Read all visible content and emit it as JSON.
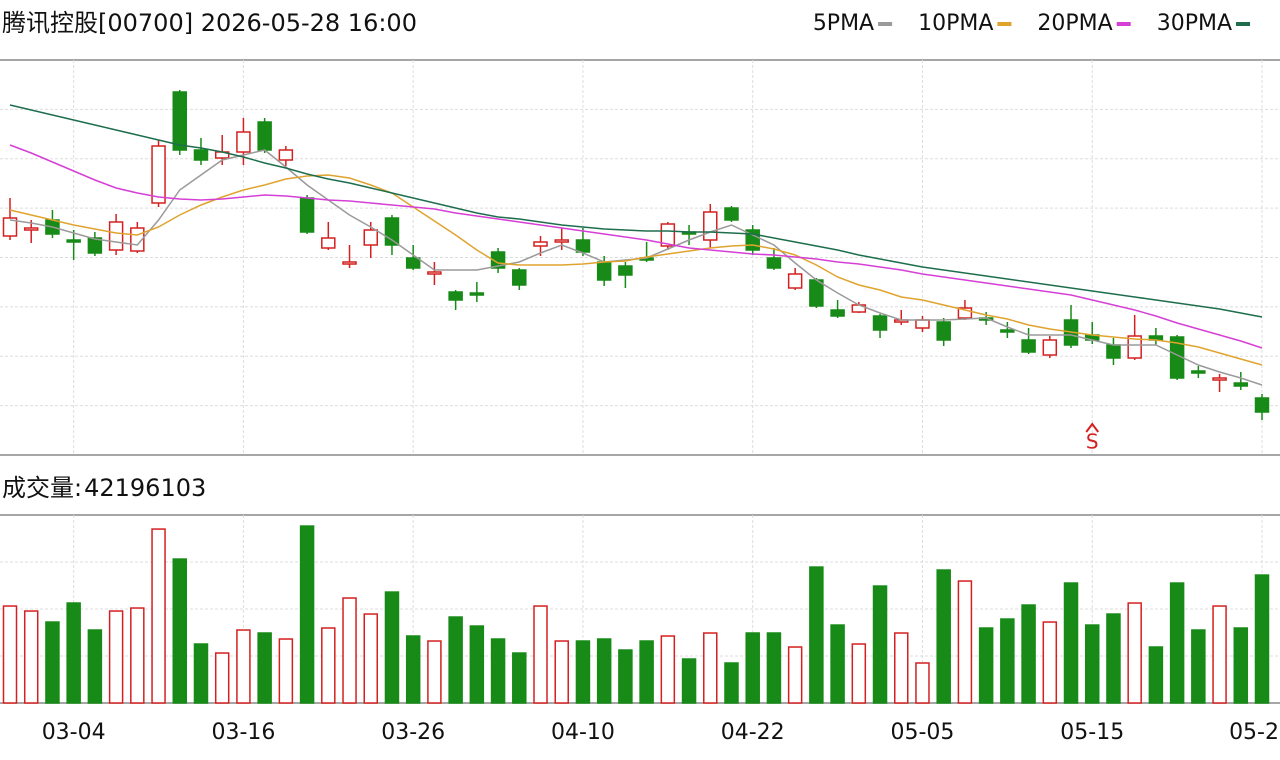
{
  "chart_data": {
    "type": "candlestick",
    "title": "腾讯控股[00700] 2026-05-28 16:00",
    "categories": [
      null,
      null,
      null,
      "03-04",
      null,
      null,
      null,
      null,
      null,
      null,
      null,
      "03-16",
      null,
      null,
      null,
      null,
      null,
      null,
      null,
      "03-26",
      null,
      null,
      null,
      null,
      null,
      null,
      null,
      "04-10",
      null,
      null,
      null,
      null,
      null,
      null,
      null,
      "04-22",
      null,
      null,
      null,
      null,
      null,
      null,
      null,
      "05-05",
      null,
      null,
      null,
      null,
      null,
      null,
      null,
      "05-15",
      null,
      null,
      null,
      null,
      null,
      null,
      null,
      "05-2"
    ],
    "open": [
      219,
      225,
      235,
      215,
      217,
      205,
      204,
      252,
      363,
      305,
      297,
      303,
      333,
      295,
      257,
      207,
      191,
      210,
      237,
      197,
      181,
      163,
      162,
      203,
      185,
      209,
      213,
      215,
      193,
      189,
      197,
      209,
      223,
      215,
      247,
      225,
      197,
      167,
      175,
      145,
      143,
      139,
      133,
      127,
      133,
      137,
      137,
      125,
      115,
      100,
      135,
      120,
      110,
      97,
      119,
      118,
      84,
      75,
      72,
      57
    ],
    "high": [
      257,
      235,
      245,
      225,
      223,
      241,
      233,
      315,
      365,
      317,
      320,
      337,
      337,
      309,
      260,
      233,
      210,
      233,
      240,
      210,
      193,
      165,
      173,
      207,
      187,
      219,
      227,
      227,
      199,
      193,
      213,
      233,
      230,
      251,
      249,
      230,
      207,
      187,
      177,
      155,
      153,
      141,
      145,
      139,
      137,
      155,
      143,
      133,
      127,
      119,
      150,
      133,
      117,
      140,
      127,
      120,
      89,
      81,
      83,
      61
    ],
    "low": [
      215,
      212,
      217,
      195,
      199,
      200,
      202,
      248,
      300,
      290,
      290,
      290,
      302,
      289,
      221,
      205,
      187,
      197,
      200,
      185,
      170,
      145,
      153,
      182,
      165,
      199,
      205,
      199,
      169,
      167,
      193,
      205,
      210,
      207,
      233,
      200,
      185,
      165,
      147,
      137,
      142,
      117,
      130,
      123,
      109,
      135,
      130,
      117,
      101,
      97,
      107,
      111,
      90,
      95,
      110,
      75,
      77,
      63,
      65,
      35
    ],
    "close": [
      237,
      227,
      221,
      213,
      202,
      233,
      227,
      309,
      305,
      295,
      303,
      323,
      305,
      305,
      223,
      217,
      193,
      225,
      210,
      187,
      183,
      155,
      160,
      187,
      170,
      213,
      215,
      203,
      175,
      180,
      195,
      231,
      221,
      243,
      235,
      205,
      187,
      181,
      149,
      139,
      150,
      125,
      135,
      135,
      115,
      147,
      135,
      123,
      103,
      115,
      110,
      115,
      97,
      119,
      115,
      77,
      82,
      77,
      69,
      43
    ],
    "up_color": "#d42020",
    "down_color": "#178a17",
    "ylim": [
      0,
      395
    ],
    "series": [
      {
        "name": "5PMA",
        "color": "#9a9a9a",
        "values": [
          235,
          232,
          228,
          222,
          216,
          213,
          210,
          235,
          265,
          280,
          295,
          300,
          305,
          288,
          270,
          255,
          240,
          228,
          215,
          200,
          185,
          185,
          185,
          189,
          193,
          202,
          210,
          202,
          193,
          195,
          197,
          206,
          215,
          223,
          230,
          220,
          210,
          192,
          175,
          162,
          150,
          142,
          135,
          135,
          135,
          136,
          137,
          128,
          120,
          120,
          120,
          115,
          110,
          110,
          110,
          100,
          90,
          83,
          77,
          70
        ]
      },
      {
        "name": "10PMA",
        "color": "#e0a32e",
        "values": [
          245,
          240,
          235,
          230,
          226,
          222,
          220,
          228,
          240,
          250,
          258,
          265,
          270,
          276,
          279,
          280,
          277,
          270,
          262,
          248,
          234,
          220,
          205,
          192,
          190,
          190,
          190,
          191,
          193,
          194,
          198,
          201,
          204,
          207,
          209,
          210,
          206,
          200,
          190,
          178,
          170,
          165,
          158,
          155,
          150,
          145,
          140,
          136,
          130,
          126,
          123,
          120,
          118,
          116,
          115,
          112,
          108,
          102,
          96,
          90
        ]
      },
      {
        "name": "20PMA",
        "color": "#d63fd6",
        "values": [
          310,
          302,
          293,
          284,
          275,
          267,
          262,
          258,
          256,
          255,
          256,
          258,
          260,
          259,
          257,
          255,
          254,
          252,
          250,
          248,
          246,
          242,
          239,
          236,
          233,
          230,
          227,
          224,
          221,
          218,
          215,
          211,
          207,
          205,
          203,
          201,
          200,
          198,
          196,
          193,
          191,
          188,
          185,
          181,
          178,
          175,
          172,
          169,
          166,
          163,
          160,
          155,
          150,
          145,
          139,
          132,
          126,
          120,
          114,
          107
        ]
      },
      {
        "name": "30PMA",
        "color": "#1e6e4e",
        "values": [
          350,
          345,
          340,
          335,
          330,
          325,
          320,
          315,
          310,
          307,
          303,
          298,
          292,
          287,
          281,
          276,
          272,
          267,
          262,
          257,
          252,
          247,
          242,
          238,
          236,
          233,
          230,
          228,
          226,
          225,
          224,
          224,
          223,
          223,
          222,
          221,
          217,
          213,
          209,
          205,
          200,
          196,
          192,
          188,
          185,
          182,
          179,
          176,
          173,
          170,
          167,
          164,
          161,
          158,
          155,
          152,
          149,
          146,
          142,
          138
        ]
      }
    ],
    "signal_label": "S",
    "volume": {
      "label": "成交量:",
      "ylim": [
        0,
        62000000
      ],
      "values": [
        31980000,
        30330000,
        26700000,
        32970000,
        24070000,
        30330000,
        31320000,
        57360000,
        47470000,
        19450000,
        16480000,
        24070000,
        23080000,
        21100000,
        58350000,
        24730000,
        34620000,
        29340000,
        36590000,
        22090000,
        20440000,
        28350000,
        25380000,
        21100000,
        16480000,
        31980000,
        20440000,
        20440000,
        21100000,
        17470000,
        20440000,
        22090000,
        14510000,
        23080000,
        13190000,
        23080000,
        23080000,
        18460000,
        44830000,
        25710000,
        19450000,
        38570000,
        23080000,
        13190000,
        43850000,
        40220000,
        24730000,
        27690000,
        32310000,
        26700000,
        39560000,
        25710000,
        29340000,
        32970000,
        18460000,
        39560000,
        24070000,
        31980000,
        24730000,
        42196103
      ]
    }
  }
}
